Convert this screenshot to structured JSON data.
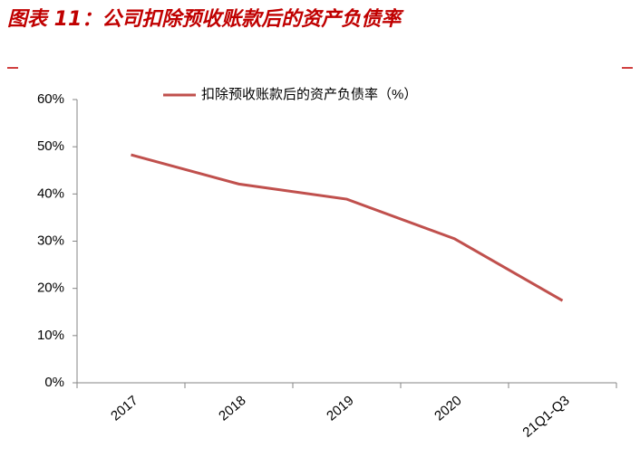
{
  "chart_data": {
    "type": "line",
    "title": "图表 11：公司扣除预收账款后的资产负债率",
    "categories": [
      "2017",
      "2018",
      "2019",
      "2020",
      "21Q1-Q3"
    ],
    "series": [
      {
        "name": "扣除预收账款后的资产负债率（%）",
        "color": "#c0504d",
        "values": [
          48.3,
          42.1,
          38.9,
          30.5,
          17.4
        ]
      }
    ],
    "ylim": [
      0,
      60
    ],
    "yticks": [
      {
        "value": 0,
        "label": "0%"
      },
      {
        "value": 10,
        "label": "10%"
      },
      {
        "value": 20,
        "label": "20%"
      },
      {
        "value": 30,
        "label": "30%"
      },
      {
        "value": 40,
        "label": "40%"
      },
      {
        "value": 50,
        "label": "50%"
      },
      {
        "value": 60,
        "label": "60%"
      }
    ],
    "legend": "top",
    "grid": false
  }
}
